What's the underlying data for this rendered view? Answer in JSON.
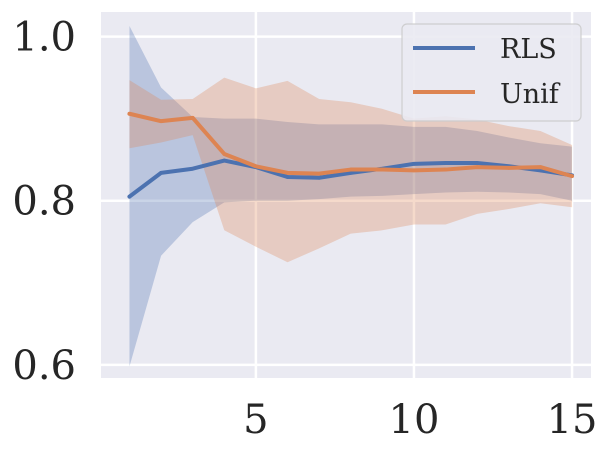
{
  "chart_data": {
    "type": "line",
    "title": "",
    "xlabel": "",
    "ylabel": "",
    "xlim": [
      0.1,
      15.6
    ],
    "ylim": [
      0.584,
      1.03
    ],
    "xticks": [
      5,
      10,
      15
    ],
    "xtick_labels": [
      "5",
      "10",
      "15"
    ],
    "yticks": [
      0.6,
      0.8,
      1.0
    ],
    "ytick_labels": [
      "0.6",
      "0.8",
      "1.0"
    ],
    "grid": true,
    "legend_position": "top-right",
    "x": [
      1,
      2,
      3,
      4,
      5,
      6,
      7,
      8,
      9,
      10,
      11,
      12,
      13,
      14,
      15
    ],
    "series": [
      {
        "name": "RLS",
        "color": "#4c72b0",
        "values": [
          0.805,
          0.834,
          0.839,
          0.849,
          0.841,
          0.829,
          0.828,
          0.834,
          0.839,
          0.845,
          0.846,
          0.846,
          0.842,
          0.837,
          0.831
        ],
        "lower": [
          0.598,
          0.733,
          0.774,
          0.798,
          0.8,
          0.8,
          0.802,
          0.805,
          0.806,
          0.808,
          0.81,
          0.811,
          0.81,
          0.808,
          0.8
        ],
        "upper": [
          1.013,
          0.938,
          0.902,
          0.9,
          0.9,
          0.896,
          0.893,
          0.893,
          0.893,
          0.89,
          0.89,
          0.885,
          0.877,
          0.87,
          0.866
        ]
      },
      {
        "name": "Unif",
        "color": "#dd8452",
        "values": [
          0.906,
          0.897,
          0.901,
          0.857,
          0.842,
          0.834,
          0.833,
          0.838,
          0.838,
          0.837,
          0.838,
          0.841,
          0.84,
          0.841,
          0.83
        ],
        "lower": [
          0.864,
          0.871,
          0.88,
          0.764,
          0.744,
          0.725,
          0.742,
          0.76,
          0.764,
          0.771,
          0.771,
          0.784,
          0.79,
          0.797,
          0.792
        ],
        "upper": [
          0.947,
          0.923,
          0.924,
          0.95,
          0.937,
          0.946,
          0.924,
          0.92,
          0.912,
          0.9,
          0.903,
          0.899,
          0.891,
          0.885,
          0.868
        ]
      }
    ]
  }
}
